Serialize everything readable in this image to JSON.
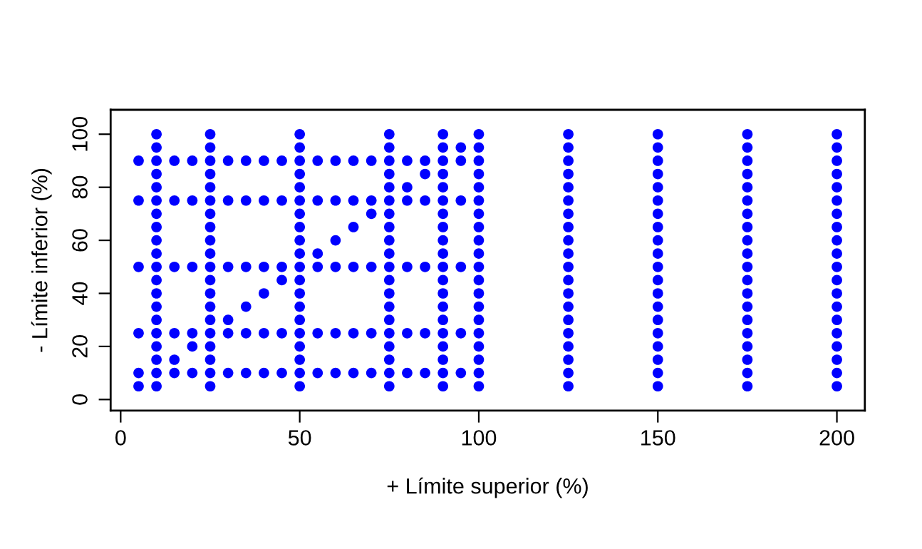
{
  "chart_data": {
    "type": "scatter",
    "xlabel": "+ Límite superior (%)",
    "ylabel": "- Límite inferior (%)",
    "xlim": [
      -2.8,
      207.8
    ],
    "ylim": [
      -4.2,
      109.2
    ],
    "xticks": [
      0,
      50,
      100,
      150,
      200
    ],
    "yticks": [
      0,
      20,
      40,
      60,
      80,
      100
    ],
    "grid": false,
    "marker": "circle",
    "series": [
      {
        "color": "#0000ff",
        "x": [
          5,
          5,
          5,
          5,
          5,
          5,
          10,
          10,
          10,
          10,
          10,
          10,
          10,
          10,
          10,
          10,
          10,
          10,
          10,
          10,
          10,
          10,
          10,
          10,
          10,
          10,
          15,
          15,
          15,
          15,
          15,
          15,
          20,
          20,
          20,
          20,
          20,
          20,
          25,
          25,
          25,
          25,
          25,
          25,
          25,
          25,
          25,
          25,
          25,
          25,
          25,
          25,
          25,
          25,
          25,
          25,
          25,
          25,
          30,
          30,
          30,
          30,
          30,
          30,
          35,
          35,
          35,
          35,
          35,
          35,
          40,
          40,
          40,
          40,
          40,
          40,
          45,
          45,
          45,
          45,
          45,
          45,
          50,
          50,
          50,
          50,
          50,
          50,
          50,
          50,
          50,
          50,
          50,
          50,
          50,
          50,
          50,
          50,
          50,
          50,
          50,
          50,
          55,
          55,
          55,
          55,
          55,
          55,
          60,
          60,
          60,
          60,
          60,
          60,
          65,
          65,
          65,
          65,
          65,
          65,
          70,
          70,
          70,
          70,
          70,
          70,
          75,
          75,
          75,
          75,
          75,
          75,
          75,
          75,
          75,
          75,
          75,
          75,
          75,
          75,
          75,
          75,
          75,
          75,
          75,
          75,
          80,
          80,
          80,
          80,
          80,
          80,
          85,
          85,
          85,
          85,
          85,
          85,
          90,
          90,
          90,
          90,
          90,
          90,
          90,
          90,
          90,
          90,
          90,
          90,
          90,
          90,
          90,
          90,
          90,
          90,
          90,
          90,
          95,
          95,
          95,
          95,
          95,
          95,
          100,
          100,
          100,
          100,
          100,
          100,
          100,
          100,
          100,
          100,
          100,
          100,
          100,
          100,
          100,
          100,
          100,
          100,
          100,
          100,
          125,
          125,
          125,
          125,
          125,
          125,
          125,
          125,
          125,
          125,
          125,
          125,
          125,
          125,
          125,
          125,
          125,
          125,
          125,
          125,
          150,
          150,
          150,
          150,
          150,
          150,
          150,
          150,
          150,
          150,
          150,
          150,
          150,
          150,
          150,
          150,
          150,
          150,
          150,
          150,
          175,
          175,
          175,
          175,
          175,
          175,
          175,
          175,
          175,
          175,
          175,
          175,
          175,
          175,
          175,
          175,
          175,
          175,
          175,
          175,
          200,
          200,
          200,
          200,
          200,
          200,
          200,
          200,
          200,
          200,
          200,
          200,
          200,
          200,
          200,
          200,
          200,
          200,
          200,
          200
        ],
        "values": [
          5,
          10,
          25,
          50,
          75,
          90,
          5,
          10,
          15,
          20,
          25,
          30,
          35,
          40,
          45,
          50,
          55,
          60,
          65,
          70,
          75,
          80,
          85,
          90,
          95,
          100,
          10,
          15,
          25,
          50,
          75,
          90,
          10,
          20,
          25,
          50,
          75,
          90,
          5,
          10,
          15,
          20,
          25,
          30,
          35,
          40,
          45,
          50,
          55,
          60,
          65,
          70,
          75,
          80,
          85,
          90,
          95,
          100,
          10,
          25,
          30,
          50,
          75,
          90,
          10,
          25,
          35,
          50,
          75,
          90,
          10,
          25,
          40,
          50,
          75,
          90,
          10,
          25,
          45,
          50,
          75,
          90,
          5,
          10,
          15,
          20,
          25,
          30,
          35,
          40,
          45,
          50,
          55,
          60,
          65,
          70,
          75,
          80,
          85,
          90,
          95,
          100,
          10,
          25,
          50,
          55,
          75,
          90,
          10,
          25,
          50,
          60,
          75,
          90,
          10,
          25,
          50,
          65,
          75,
          90,
          10,
          25,
          50,
          70,
          75,
          90,
          5,
          10,
          15,
          20,
          25,
          30,
          35,
          40,
          45,
          50,
          55,
          60,
          65,
          70,
          75,
          80,
          85,
          90,
          95,
          100,
          10,
          25,
          50,
          75,
          80,
          90,
          10,
          25,
          50,
          75,
          85,
          90,
          5,
          10,
          15,
          20,
          25,
          30,
          35,
          40,
          45,
          50,
          55,
          60,
          65,
          70,
          75,
          80,
          85,
          90,
          95,
          100,
          10,
          25,
          50,
          75,
          90,
          95,
          5,
          10,
          15,
          20,
          25,
          30,
          35,
          40,
          45,
          50,
          55,
          60,
          65,
          70,
          75,
          80,
          85,
          90,
          95,
          100,
          5,
          10,
          15,
          20,
          25,
          30,
          35,
          40,
          45,
          50,
          55,
          60,
          65,
          70,
          75,
          80,
          85,
          90,
          95,
          100,
          5,
          10,
          15,
          20,
          25,
          30,
          35,
          40,
          45,
          50,
          55,
          60,
          65,
          70,
          75,
          80,
          85,
          90,
          95,
          100,
          5,
          10,
          15,
          20,
          25,
          30,
          35,
          40,
          45,
          50,
          55,
          60,
          65,
          70,
          75,
          80,
          85,
          90,
          95,
          100,
          5,
          10,
          15,
          20,
          25,
          30,
          35,
          40,
          45,
          50,
          55,
          60,
          65,
          70,
          75,
          80,
          85,
          90,
          95,
          100
        ]
      }
    ]
  }
}
